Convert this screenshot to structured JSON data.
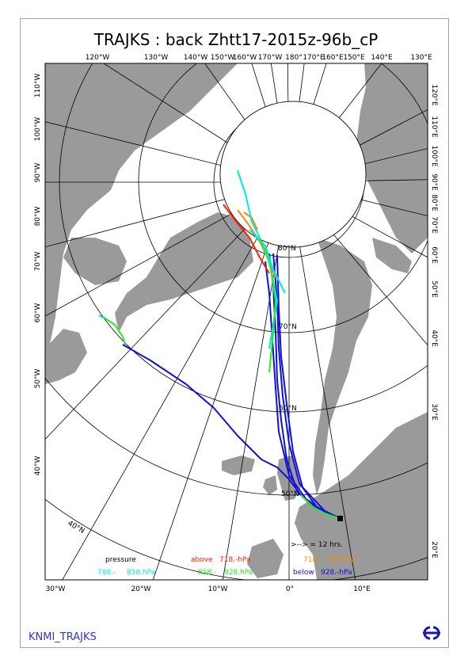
{
  "title": "TRAJKS : back Zhtt17-2015z-96b_cP",
  "footer": {
    "label": "KNMI_TRAJKS"
  },
  "axes": {
    "top_lon": [
      "120°W",
      "130°W",
      "140°W",
      "150°W",
      "160°W",
      "170°W",
      "180°",
      "170°E",
      "160°E",
      "150°E",
      "140°E",
      "130°E"
    ],
    "bottom_lon": [
      "30°W",
      "20°W",
      "10°W",
      "0°",
      "10°E"
    ],
    "left_lon": [
      "110°W",
      "100°W",
      "90°W",
      "80°W",
      "70°W",
      "60°W",
      "50°W",
      "40°W"
    ],
    "right_lon": [
      "120°E",
      "110°E",
      "100°E",
      "90°E",
      "80°E",
      "70°E",
      "60°E",
      "50°E",
      "40°E",
      "30°E",
      "20°E"
    ],
    "lat": [
      "80°N",
      "70°N",
      "60°N",
      "50°N",
      "40°N"
    ]
  },
  "legend": {
    "pressure": "pressure",
    "marker_note": ">--> = 12 hrs.",
    "bands": [
      {
        "label": "above",
        "value": "718.-hPa",
        "color": "#ff2200"
      },
      {
        "label": "718.-",
        "value": "788.hPa",
        "color": "#ff8800"
      },
      {
        "label": "788.-",
        "value": "858.hPa",
        "color": "#00e5ee"
      },
      {
        "label": "858.-",
        "value": "928.hPa",
        "color": "#22ee22"
      },
      {
        "label": "below",
        "value": "928.-hPa",
        "color": "#1010dd"
      }
    ]
  },
  "colors": {
    "land": "#9a9a9a",
    "sea": "#ffffff",
    "grid": "#000000",
    "frame": "#9a9aff"
  }
}
